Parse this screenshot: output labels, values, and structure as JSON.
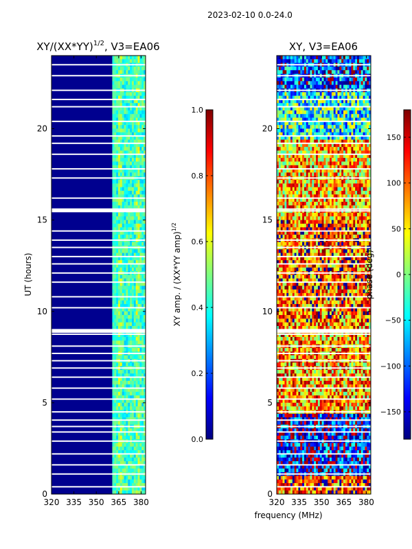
{
  "suptitle": "2023-02-10 0.0-24.0",
  "colorscale": [
    "#00007f",
    "#0000ff",
    "#007fff",
    "#00ffff",
    "#7fff7f",
    "#ffff00",
    "#ff7f00",
    "#ff0000",
    "#7f0000"
  ],
  "chart_data": [
    {
      "type": "heatmap",
      "title_main": "XY/(XX*YY)",
      "title_exp": "1/2",
      "title_tail": ", V3=EA06",
      "ylabel": "UT (hours)",
      "xlabel": "",
      "xlim": [
        320,
        383
      ],
      "ylim": [
        0,
        24
      ],
      "xticks": [
        320,
        335,
        350,
        365,
        380
      ],
      "yticks": [
        0,
        5,
        10,
        15,
        20
      ],
      "colorbar": {
        "label_main": "XY amp. / (XX*YY amp)",
        "label_exp": "1/2",
        "range": [
          0.0,
          1.0
        ],
        "ticks": [
          "0.0",
          "0.2",
          "0.4",
          "0.6",
          "0.8",
          "1.0"
        ],
        "tick_values": [
          0.0,
          0.2,
          0.4,
          0.6,
          0.8,
          1.0
        ]
      },
      "note": "low amplitude (~0.05) below 360 MHz; ~0.3-0.6 between 361-382 MHz"
    },
    {
      "type": "heatmap",
      "title": "XY, V3=EA06",
      "xlabel": "frequency (MHz)",
      "ylabel": "",
      "xlim": [
        320,
        383
      ],
      "ylim": [
        0,
        24
      ],
      "xticks": [
        320,
        335,
        350,
        365,
        380
      ],
      "yticks": [
        0,
        5,
        10,
        15,
        20
      ],
      "colorbar": {
        "label": "phase (deg)",
        "range": [
          -180,
          180
        ],
        "ticks": [
          "−150",
          "−100",
          "−50",
          "0",
          "50",
          "100",
          "150"
        ],
        "tick_values": [
          -150,
          -100,
          -50,
          0,
          50,
          100,
          150
        ]
      },
      "note": "phase mostly +50..+180 (yellow-red) from 5-20 h, mixed blue/cyan 0-5 h and 20-24 h"
    }
  ]
}
